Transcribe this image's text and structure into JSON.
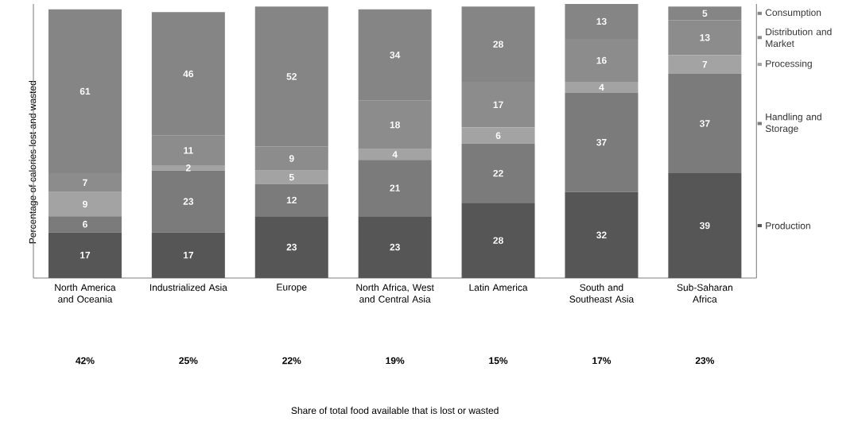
{
  "chart_data": {
    "type": "bar",
    "stacked": true,
    "data_labels": true,
    "legend": "right",
    "ylabel": "Percentage of calories lost and wasted",
    "categories": [
      "North America and Oceania",
      "Industrialized Asia",
      "Europe",
      "North Africa, West and Central Asia",
      "Latin America",
      "South and Southeast Asia",
      "Sub-Saharan Africa"
    ],
    "series": [
      {
        "name": "Production",
        "color": "#565656",
        "values": [
          17,
          17,
          23,
          23,
          28,
          32,
          39
        ]
      },
      {
        "name": "Handling and Storage",
        "color": "#7b7b7b",
        "values": [
          6,
          23,
          12,
          21,
          22,
          37,
          37
        ]
      },
      {
        "name": "Processing",
        "color": "#a3a3a3",
        "values": [
          9,
          2,
          5,
          4,
          6,
          4,
          7
        ]
      },
      {
        "name": "Distribution and Market",
        "color": "#8c8c8c",
        "values": [
          7,
          11,
          9,
          18,
          17,
          16,
          13
        ]
      },
      {
        "name": "Consumption",
        "color": "#858585",
        "values": [
          61,
          46,
          52,
          34,
          28,
          13,
          5
        ]
      }
    ],
    "annotations": [
      "42%",
      "25%",
      "22%",
      "19%",
      "15%",
      "17%",
      "23%",
      "Share of total food available that is lost or wasted"
    ]
  }
}
